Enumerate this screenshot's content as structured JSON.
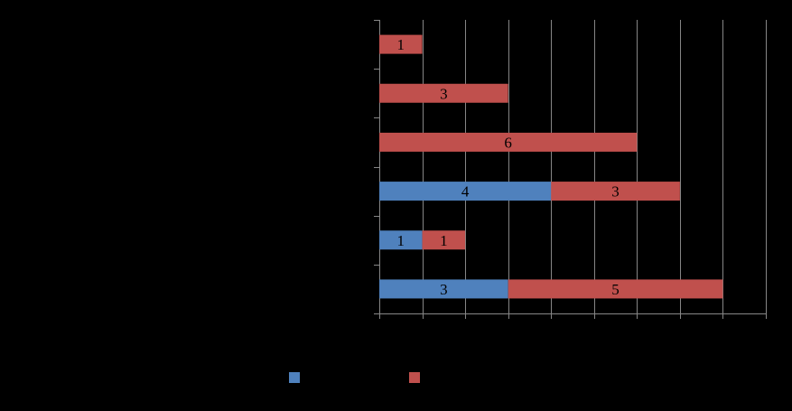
{
  "chart_data": {
    "type": "bar",
    "orientation": "horizontal",
    "stacked": true,
    "categories": [
      "",
      "",
      "",
      "",
      "",
      ""
    ],
    "series": [
      {
        "values": [
          3,
          1,
          4,
          0,
          0,
          0
        ],
        "color": "#4F81BD"
      },
      {
        "values": [
          5,
          1,
          3,
          6,
          3,
          1
        ],
        "color": "#C0504D"
      }
    ],
    "data_labels": true,
    "xlim": [
      0,
      9
    ],
    "x_major_step": 1,
    "grid": true,
    "legend": "bottom",
    "title": "",
    "xlabel": "",
    "ylabel": ""
  },
  "colors": {
    "background": "#000000",
    "gridline": "#868686",
    "axis": "#868686",
    "label_text": "#000000"
  }
}
